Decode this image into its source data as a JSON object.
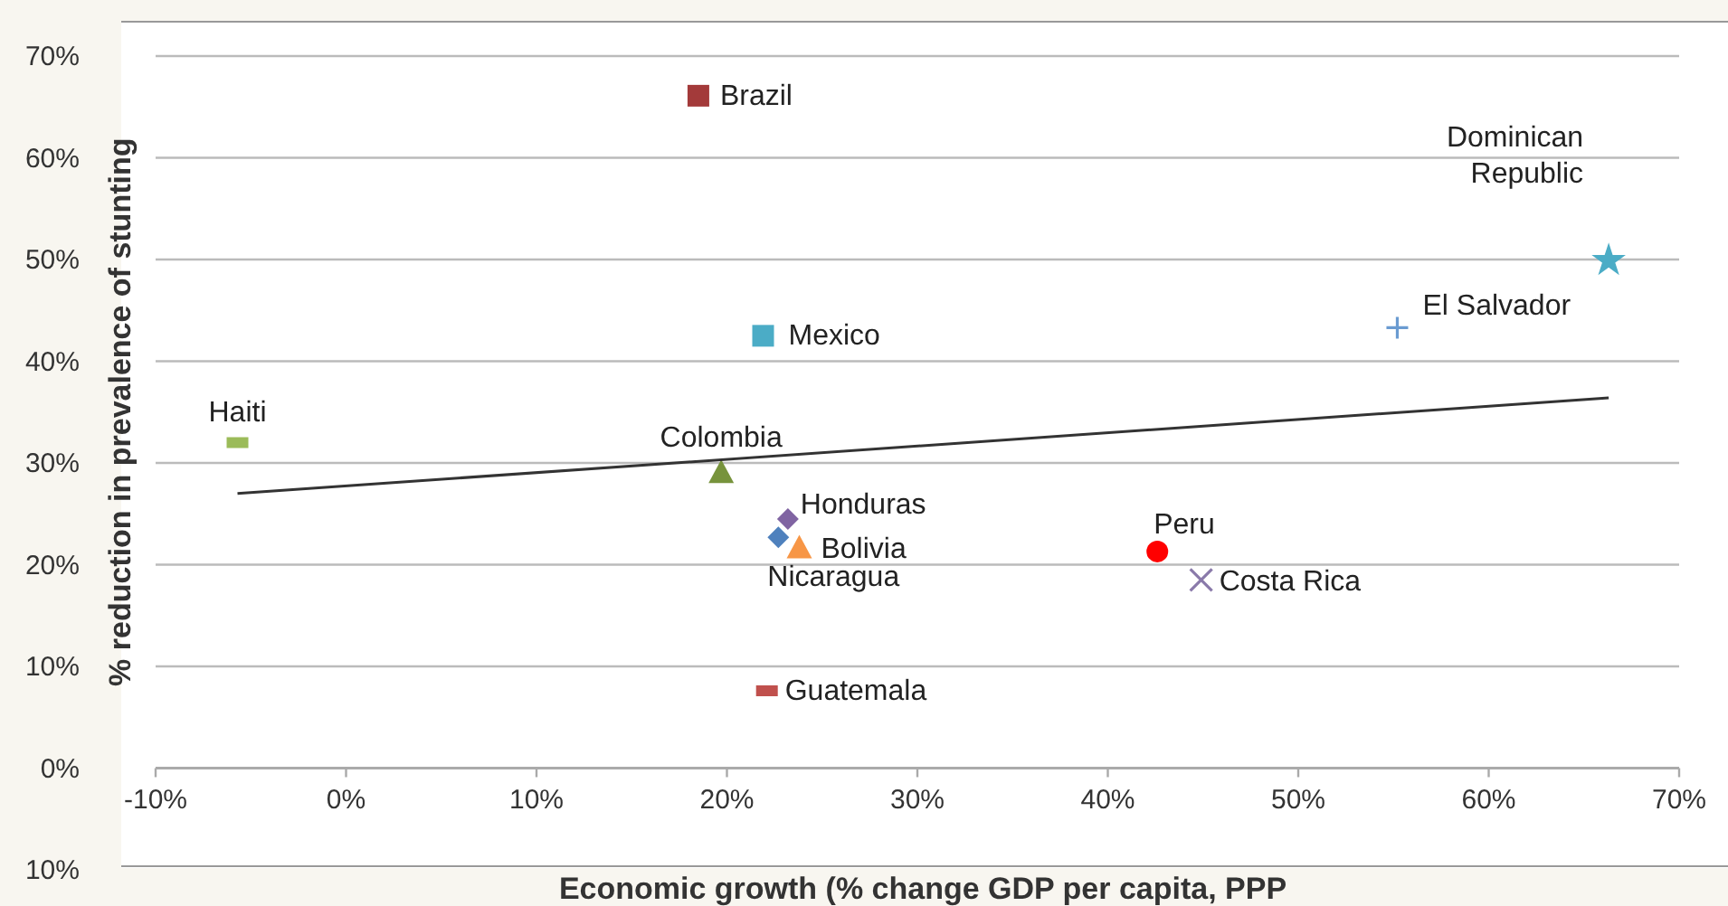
{
  "chart_data": {
    "type": "scatter",
    "xlabel": "Economic growth (% change GDP per capita, PPP",
    "ylabel": "% reduction in prevalence of stunting",
    "xlim": [
      -10,
      70
    ],
    "xticks": [
      {
        "value": -10,
        "label": "-10%"
      },
      {
        "value": 0,
        "label": "0%"
      },
      {
        "value": 10,
        "label": "10%"
      },
      {
        "value": 20,
        "label": "20%"
      },
      {
        "value": 30,
        "label": "30%"
      },
      {
        "value": 40,
        "label": "40%"
      },
      {
        "value": 50,
        "label": "50%"
      },
      {
        "value": 60,
        "label": "60%"
      },
      {
        "value": 70,
        "label": "70%"
      }
    ],
    "ylim": [
      -10,
      70
    ],
    "yticks": [
      {
        "value": -10,
        "label": "10%"
      },
      {
        "value": 0,
        "label": "0%"
      },
      {
        "value": 10,
        "label": "10%"
      },
      {
        "value": 20,
        "label": "20%"
      },
      {
        "value": 30,
        "label": "30%"
      },
      {
        "value": 40,
        "label": "40%"
      },
      {
        "value": 50,
        "label": "50%"
      },
      {
        "value": 60,
        "label": "60%"
      },
      {
        "value": 70,
        "label": "70%"
      }
    ],
    "grid": "y",
    "series": [
      {
        "name": "Brazil",
        "color": "#a33a3a",
        "marker": "square",
        "x": [
          18.5
        ],
        "values": [
          66.1
        ]
      },
      {
        "name": "Mexico",
        "color": "#4bacc6",
        "marker": "square",
        "x": [
          21.9
        ],
        "values": [
          42.5
        ]
      },
      {
        "name": "Haiti",
        "color": "#9bbb59",
        "x": [
          -5.7
        ],
        "values": [
          32.0
        ]
      },
      {
        "name": "Colombia",
        "color": "#77933c",
        "marker": "triangle",
        "x": [
          19.7
        ],
        "values": [
          29.1
        ]
      },
      {
        "name": "Honduras",
        "color": "#8064a2",
        "marker": "diamond",
        "x": [
          23.2
        ],
        "values": [
          24.5
        ]
      },
      {
        "name": "Nicaragua",
        "color": "#4f81bd",
        "marker": "diamond",
        "x": [
          22.7
        ],
        "values": [
          22.7
        ]
      },
      {
        "name": "Bolivia",
        "color": "#f79646",
        "marker": "triangle",
        "x": [
          23.8
        ],
        "values": [
          21.7
        ]
      },
      {
        "name": "Guatemala",
        "color": "#c0504d",
        "x": [
          22.1
        ],
        "values": [
          7.6
        ]
      },
      {
        "name": "Peru",
        "color": "#ff0000",
        "marker": "circle",
        "x": [
          42.6
        ],
        "values": [
          21.3
        ]
      },
      {
        "name": "Costa Rica",
        "color": "#8a7aaa",
        "marker": "cross",
        "x": [
          44.9
        ],
        "values": [
          18.5
        ]
      },
      {
        "name": "El Salvador",
        "color": "#6a9bd1",
        "marker": "plus",
        "x": [
          55.2
        ],
        "values": [
          43.3
        ]
      },
      {
        "name": "Dominican Republic",
        "color": "#4bacc6",
        "marker": "star",
        "x": [
          66.3
        ],
        "values": [
          49.9
        ]
      },
      {
        "type": "line",
        "color": "#333333",
        "marker": "none",
        "x": [
          -5.7,
          66.3
        ],
        "values": [
          27.0,
          36.4
        ]
      }
    ]
  }
}
